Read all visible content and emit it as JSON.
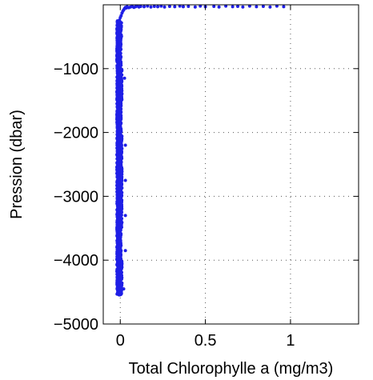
{
  "chart_data": {
    "type": "scatter",
    "title": "",
    "xlabel": "Total Chlorophylle a (mg/m3)",
    "ylabel": "Pression (dbar)",
    "xlim": [
      -0.1,
      1.4
    ],
    "ylim": [
      -5000,
      0
    ],
    "xticks": [
      0,
      0.5,
      1
    ],
    "xtick_labels": [
      "0",
      "0.5",
      "1"
    ],
    "yticks": [
      -5000,
      -4000,
      -3000,
      -2000,
      -1000
    ],
    "ytick_labels": [
      "−5000",
      "−4000",
      "−3000",
      "−2000",
      "−1000"
    ],
    "grid": true,
    "marker_color": "#1f1fe6",
    "series": [
      {
        "points": [
          [
            0.96,
            -30
          ],
          [
            0.92,
            -20
          ],
          [
            0.88,
            -35
          ],
          [
            0.84,
            -25
          ],
          [
            0.8,
            -30
          ],
          [
            0.76,
            -20
          ],
          [
            0.72,
            -35
          ],
          [
            0.69,
            -25
          ],
          [
            0.66,
            -30
          ],
          [
            0.62,
            -20
          ],
          [
            0.58,
            -35
          ],
          [
            0.55,
            -25
          ],
          [
            0.5,
            -30
          ],
          [
            0.47,
            -20
          ],
          [
            0.44,
            -35
          ],
          [
            0.4,
            -25
          ],
          [
            0.37,
            -30
          ],
          [
            0.35,
            -20
          ],
          [
            0.32,
            -30
          ],
          [
            0.29,
            -25
          ],
          [
            0.26,
            -35
          ],
          [
            0.24,
            -20
          ],
          [
            0.22,
            -30
          ],
          [
            0.2,
            -25
          ],
          [
            0.18,
            -35
          ],
          [
            0.16,
            -20
          ],
          [
            0.14,
            -30
          ],
          [
            0.12,
            -25
          ],
          [
            0.11,
            -35
          ],
          [
            0.1,
            -20
          ],
          [
            0.09,
            -30
          ],
          [
            0.08,
            -40
          ],
          [
            0.07,
            -25
          ],
          [
            0.06,
            -35
          ],
          [
            0.05,
            -45
          ],
          [
            0.04,
            -30
          ],
          [
            0.035,
            -50
          ],
          [
            0.03,
            -40
          ],
          [
            0.025,
            -60
          ],
          [
            0.02,
            -80
          ],
          [
            0.015,
            -100
          ],
          [
            0.01,
            -130
          ],
          [
            0.005,
            -170
          ],
          [
            0.0,
            -200
          ],
          [
            -0.005,
            -240
          ]
        ],
        "profile": [
          [
            -500,
            -0.02,
            0.005
          ],
          [
            -1000,
            -0.02,
            0.01
          ],
          [
            -1500,
            -0.02,
            0.005
          ],
          [
            -2000,
            -0.02,
            0.01
          ],
          [
            -2500,
            -0.02,
            0.01
          ],
          [
            -3000,
            -0.02,
            0.01
          ],
          [
            -3500,
            -0.02,
            0.005
          ],
          [
            -4000,
            -0.02,
            0.01
          ],
          [
            -4500,
            -0.02,
            0.005
          ]
        ],
        "outliers": [
          [
            0.03,
            -2200
          ],
          [
            0.03,
            -2750
          ],
          [
            0.03,
            -3300
          ],
          [
            0.03,
            -3850
          ],
          [
            0.025,
            -1150
          ],
          [
            0.02,
            -4450
          ]
        ]
      }
    ]
  }
}
